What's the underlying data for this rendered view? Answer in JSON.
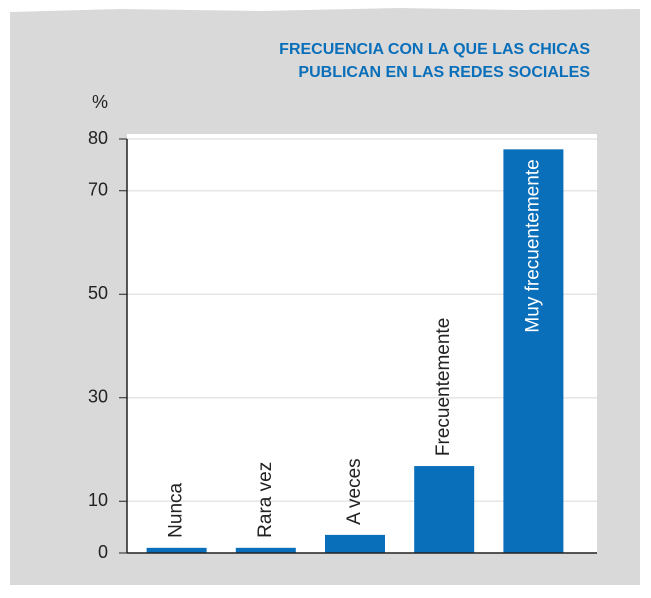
{
  "chart_data": {
    "type": "bar",
    "title": [
      "FRECUENCIA CON LA QUE LAS CHICAS",
      "PUBLICAN EN LAS REDES SOCIALES"
    ],
    "y_label": "%",
    "categories": [
      "Nunca",
      "Rara vez",
      "A veces",
      "Frecuentemente",
      "Muy frecuentemente"
    ],
    "values": [
      1,
      1,
      3.5,
      16.8,
      78
    ],
    "color": "#0a6fba",
    "ylim": [
      0,
      80
    ],
    "yticks": [
      0,
      10,
      30,
      50,
      70,
      80
    ],
    "grid": true
  }
}
